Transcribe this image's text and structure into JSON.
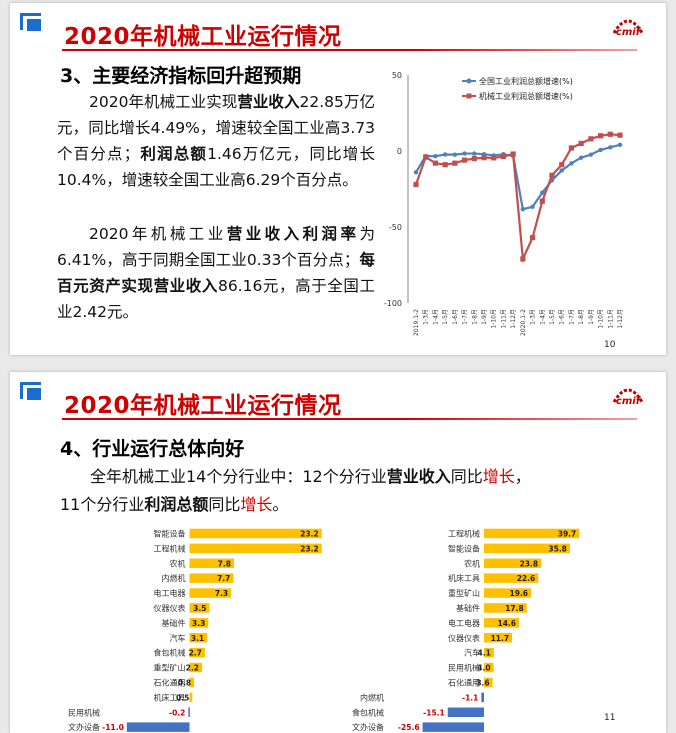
{
  "slide1": {
    "title": "2020年机械工业运行情况",
    "heading": "3、主要经济指标回升超预期",
    "p1": [
      "2020年机械工业实现",
      "营业收入",
      "22.85万亿元，同比增长4.49%，增速较全国工业高3.73个百分点；",
      "利润总额",
      "1.46万亿元，同比增长10.4%，增速较全国工业高6.29个百分点。"
    ],
    "p2": [
      "2020年机械工业",
      "营业收入利润率",
      "为6.41%，高于同期全国工业0.33个百分点；",
      "每百元资产实现营业收入",
      "86.16元，高于全国工业2.42元。"
    ],
    "page": "10"
  },
  "slide2": {
    "title": "2020年机械工业运行情况",
    "heading": "4、行业运行总体向好",
    "p1": [
      "全年机械工业14个分行业中：12个分行业",
      "营业收入",
      "同比",
      "增长",
      "，"
    ],
    "p2": [
      "11个分行业",
      "利润总额",
      "同比",
      "增长",
      "。"
    ],
    "page": "11"
  },
  "chart_data": [
    {
      "type": "line",
      "legend": [
        "全国工业利润总额增速(%)",
        "机械工业利润总额增速(%)"
      ],
      "legend_position": "top-right",
      "x": [
        "2019.1-2",
        "1-3月",
        "1-4月",
        "1-5月",
        "1-6月",
        "1-7月",
        "1-8月",
        "1-9月",
        "1-10月",
        "1-11月",
        "1-12月",
        "2020.1-2",
        "1-3月",
        "1-4月",
        "1-5月",
        "1-6月",
        "1-7月",
        "1-8月",
        "1-9月",
        "1-10月",
        "1-11月",
        "1-12月"
      ],
      "series": [
        {
          "name": "全国工业利润总额增速(%)",
          "color": "#4f81bd",
          "values": [
            -14,
            -3.3,
            -3.4,
            -2.3,
            -2.4,
            -1.7,
            -1.7,
            -2.1,
            -2.9,
            -2.1,
            -3.3,
            -38.3,
            -36.7,
            -27.4,
            -19.3,
            -12.8,
            -8.1,
            -4.4,
            -2.4,
            0.7,
            2.4,
            4.1
          ]
        },
        {
          "name": "机械工业利润总额增速(%)",
          "color": "#c0504d",
          "values": [
            -22,
            -4,
            -8,
            -9,
            -8,
            -6,
            -5,
            -4.4,
            -4.5,
            -3.6,
            -2,
            -71,
            -57,
            -33,
            -16,
            -9,
            2,
            5,
            8,
            10,
            11,
            10.4
          ]
        }
      ],
      "yticks": [
        50,
        0,
        -50,
        -100
      ],
      "ylim": [
        -100,
        50
      ],
      "grid": false
    },
    {
      "type": "bar",
      "orientation": "horizontal",
      "categories": [
        "智能设备",
        "工程机械",
        "农机",
        "内燃机",
        "电工电器",
        "仪器仪表",
        "基础件",
        "汽车",
        "食包机械",
        "重型矿山",
        "石化通用",
        "机床工具",
        "民用机械",
        "文办设备"
      ],
      "values": [
        23.2,
        23.2,
        7.8,
        7.7,
        7.3,
        3.5,
        3.3,
        3.1,
        2.7,
        2.2,
        0.8,
        0.5,
        -0.2,
        -11.0
      ],
      "labels": [
        "23.2",
        "23.2",
        "7.8",
        "7.7",
        "7.3",
        "3.5",
        "3.3",
        "3.1",
        "2.7",
        "2.2",
        "0.8",
        "0.5",
        "-0.2",
        "-11.0"
      ],
      "xticks": [
        "-15",
        "-10",
        "-5",
        "0",
        "5",
        "10",
        "15",
        "20",
        "25"
      ],
      "xlim": [
        -15,
        25
      ],
      "positive_color": "#ffc000",
      "negative_color": "#4472c4"
    },
    {
      "type": "bar",
      "orientation": "horizontal",
      "categories": [
        "工程机械",
        "智能设备",
        "农机",
        "机床工具",
        "重型矿山",
        "基础件",
        "电工电器",
        "仪器仪表",
        "汽车",
        "民用机械",
        "石化通用",
        "内燃机",
        "食包机械",
        "文办设备"
      ],
      "values": [
        39.7,
        35.8,
        23.8,
        22.6,
        19.6,
        17.8,
        14.6,
        11.7,
        4.1,
        4.0,
        3.6,
        -1.1,
        -15.1,
        -25.6
      ],
      "labels": [
        "39.7",
        "35.8",
        "23.8",
        "22.6",
        "19.6",
        "17.8",
        "14.6",
        "11.7",
        "4.1",
        "4.0",
        "3.6",
        "-1.1",
        "-15.1",
        "-25.6"
      ],
      "xticks": [
        "-40",
        "-20",
        "0",
        "20",
        "40",
        "60"
      ],
      "xlim": [
        -40,
        60
      ],
      "positive_color": "#ffc000",
      "negative_color": "#4472c4"
    }
  ]
}
